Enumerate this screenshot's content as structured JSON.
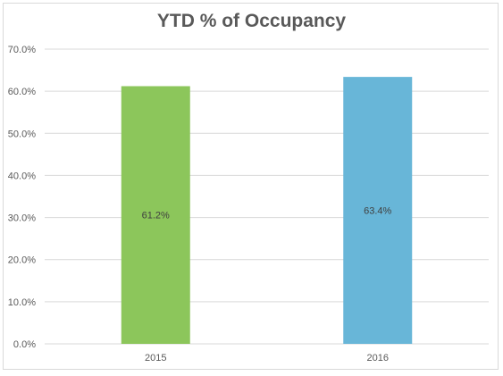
{
  "chart_data": {
    "type": "bar",
    "title": "YTD % of Occupancy",
    "xlabel": "",
    "ylabel": "",
    "categories": [
      "2015",
      "2016"
    ],
    "values": [
      61.2,
      63.4
    ],
    "data_labels": [
      "61.2%",
      "63.4%"
    ],
    "bar_colors": [
      "#8cc65b",
      "#68b6d8"
    ],
    "ylim": [
      0,
      70
    ],
    "yticks": [
      0,
      10,
      20,
      30,
      40,
      50,
      60,
      70
    ],
    "ytick_labels": [
      "0.0%",
      "10.0%",
      "20.0%",
      "30.0%",
      "40.0%",
      "50.0%",
      "60.0%",
      "70.0%"
    ],
    "grid": true,
    "legend": "none"
  }
}
